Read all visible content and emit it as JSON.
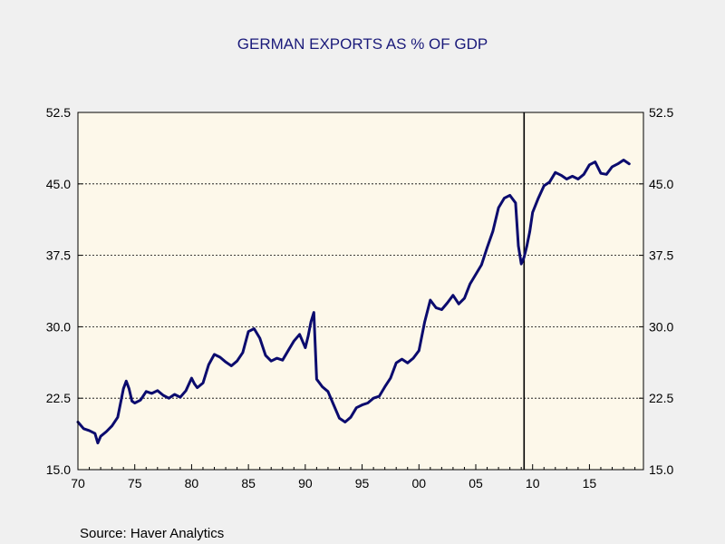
{
  "chart_data": {
    "type": "line",
    "title": "GERMAN EXPORTS AS % OF GDP",
    "source": "Source:  Haver Analytics",
    "series_color": "#0b0b6e",
    "plot_background": "#fdf8ea",
    "x_range": [
      1970,
      2019.75
    ],
    "ylim": [
      15.0,
      52.5
    ],
    "x_ticks": [
      {
        "value": 1970,
        "label": "70"
      },
      {
        "value": 1975,
        "label": "75"
      },
      {
        "value": 1980,
        "label": "80"
      },
      {
        "value": 1985,
        "label": "85"
      },
      {
        "value": 1990,
        "label": "90"
      },
      {
        "value": 1995,
        "label": "95"
      },
      {
        "value": 2000,
        "label": "00"
      },
      {
        "value": 2005,
        "label": "05"
      },
      {
        "value": 2010,
        "label": "10"
      },
      {
        "value": 2015,
        "label": "15"
      }
    ],
    "y_ticks": [
      {
        "value": 15.0,
        "label": "15.0"
      },
      {
        "value": 22.5,
        "label": "22.5"
      },
      {
        "value": 30.0,
        "label": "30.0"
      },
      {
        "value": 37.5,
        "label": "37.5"
      },
      {
        "value": 45.0,
        "label": "45.0"
      },
      {
        "value": 52.5,
        "label": "52.5"
      }
    ],
    "grid_y": [
      22.5,
      30.0,
      37.5,
      45.0
    ],
    "vertical_marker_x": 2009.25,
    "series": [
      {
        "x": [
          1970.0,
          1970.5,
          1971.0,
          1971.5,
          1971.75,
          1972.0,
          1972.5,
          1973.0,
          1973.5,
          1974.0,
          1974.25,
          1974.5,
          1974.75,
          1975.0,
          1975.5,
          1976.0,
          1976.5,
          1977.0,
          1977.5,
          1978.0,
          1978.5,
          1979.0,
          1979.5,
          1980.0,
          1980.25,
          1980.5,
          1981.0,
          1981.5,
          1982.0,
          1982.5,
          1983.0,
          1983.5,
          1984.0,
          1984.5,
          1985.0,
          1985.5,
          1986.0,
          1986.5,
          1987.0,
          1987.5,
          1988.0,
          1988.5,
          1989.0,
          1989.5,
          1990.0,
          1990.25,
          1990.5,
          1990.75,
          1991.0,
          1991.5,
          1992.0,
          1992.5,
          1993.0,
          1993.5,
          1994.0,
          1994.5,
          1995.0,
          1995.5,
          1996.0,
          1996.5,
          1997.0,
          1997.5,
          1998.0,
          1998.5,
          1999.0,
          1999.5,
          2000.0,
          2000.5,
          2001.0,
          2001.5,
          2002.0,
          2002.5,
          2003.0,
          2003.5,
          2004.0,
          2004.5,
          2005.0,
          2005.5,
          2006.0,
          2006.5,
          2007.0,
          2007.5,
          2008.0,
          2008.5,
          2008.75,
          2009.0,
          2009.25,
          2009.5,
          2009.75,
          2010.0,
          2010.5,
          2011.0,
          2011.5,
          2012.0,
          2012.5,
          2013.0,
          2013.5,
          2014.0,
          2014.5,
          2015.0,
          2015.5,
          2016.0,
          2016.5,
          2017.0,
          2017.5,
          2018.0,
          2018.5
        ],
        "values": [
          20.0,
          19.3,
          19.1,
          18.8,
          17.8,
          18.5,
          19.0,
          19.6,
          20.5,
          23.5,
          24.3,
          23.5,
          22.2,
          22.0,
          22.3,
          23.2,
          23.0,
          23.3,
          22.8,
          22.5,
          22.9,
          22.6,
          23.3,
          24.6,
          24.0,
          23.6,
          24.1,
          26.0,
          27.1,
          26.8,
          26.3,
          25.9,
          26.4,
          27.3,
          29.5,
          29.8,
          28.8,
          27.0,
          26.4,
          26.7,
          26.5,
          27.5,
          28.5,
          29.2,
          27.8,
          29.0,
          30.5,
          31.5,
          24.5,
          23.7,
          23.2,
          21.8,
          20.4,
          20.0,
          20.5,
          21.5,
          21.8,
          22.0,
          22.5,
          22.7,
          23.7,
          24.6,
          26.2,
          26.6,
          26.2,
          26.7,
          27.5,
          30.5,
          32.8,
          32.0,
          31.8,
          32.5,
          33.3,
          32.4,
          33.0,
          34.5,
          35.5,
          36.5,
          38.3,
          40.0,
          42.5,
          43.5,
          43.8,
          43.0,
          38.5,
          36.6,
          37.3,
          38.5,
          40.0,
          42.0,
          43.5,
          44.8,
          45.2,
          46.2,
          45.9,
          45.5,
          45.8,
          45.5,
          46.0,
          47.0,
          47.3,
          46.1,
          46.0,
          46.8,
          47.1,
          47.5,
          47.1
        ]
      }
    ]
  }
}
